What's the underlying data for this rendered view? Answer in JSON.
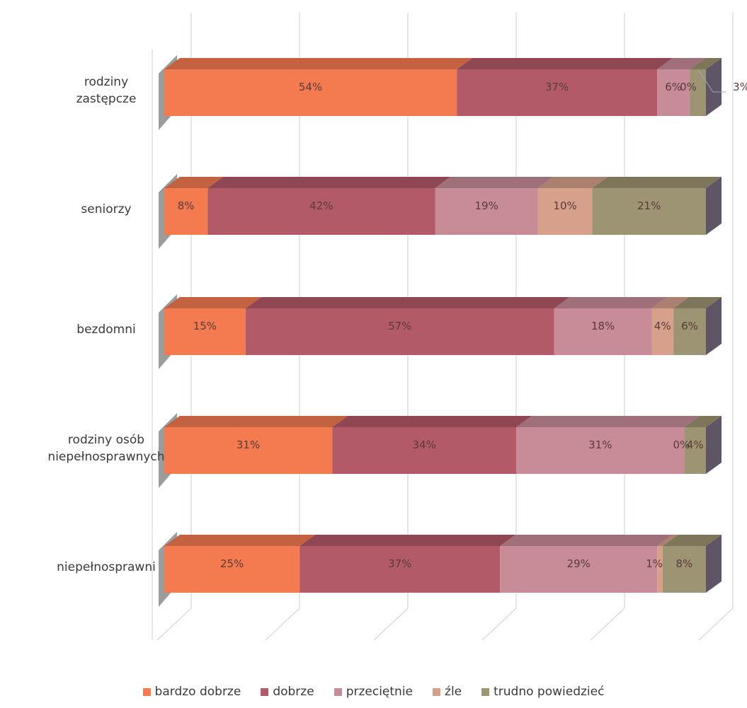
{
  "chart_data": {
    "type": "bar",
    "orientation": "horizontal",
    "stacked": true,
    "percent": true,
    "categories": [
      "rodziny zastępcze",
      "seniorzy",
      "bezdomni",
      "rodziny osób niepełnosprawnych",
      "niepełnosprawni"
    ],
    "category_lines": [
      [
        "rodziny",
        "zastępcze"
      ],
      [
        "seniorzy"
      ],
      [
        "bezdomni"
      ],
      [
        "rodziny osób",
        "niepełnosprawnych"
      ],
      [
        "niepełnosprawni"
      ]
    ],
    "series": [
      {
        "name": "bardzo dobrze",
        "color": "#f47a50",
        "values": [
          54,
          8,
          15,
          31,
          25
        ]
      },
      {
        "name": "dobrze",
        "color": "#b35a68",
        "values": [
          37,
          42,
          57,
          34,
          37
        ]
      },
      {
        "name": "przeciętnie",
        "color": "#c88c98",
        "values": [
          6,
          19,
          18,
          31,
          29
        ]
      },
      {
        "name": "źle",
        "color": "#d6a08a",
        "values": [
          0,
          10,
          4,
          0,
          1
        ]
      },
      {
        "name": "trudno powiedzieć",
        "color": "#9c9472",
        "values": [
          3,
          21,
          6,
          4,
          8
        ]
      }
    ],
    "xlim": [
      0,
      100
    ],
    "legend_position": "bottom",
    "grid": true
  }
}
